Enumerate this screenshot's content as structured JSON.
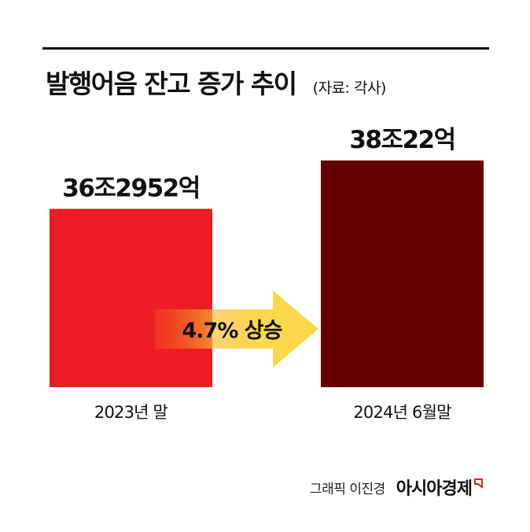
{
  "header": {
    "title": "발행어음 잔고 증가 추이",
    "source": "(자료: 각사)"
  },
  "footer": {
    "graphic_credit": "그래픽 이진경",
    "publisher": "아시아경제"
  },
  "colors": {
    "bar_2023": "#ed1c24",
    "bar_2024": "#640000",
    "arrow_start": "#f7941d",
    "arrow_end": "#fdd84a",
    "logo_red": "#e2231a"
  },
  "chart_data": {
    "type": "bar",
    "categories": [
      "2023년 말",
      "2024년 6월말"
    ],
    "values": [
      362952,
      380022
    ],
    "data_labels": [
      "36조2952억",
      "38조22억"
    ],
    "unit": "억",
    "ylim": [
      300000,
      390000
    ],
    "grid": false,
    "legend": "none",
    "annotation": "4.7% 상승"
  }
}
